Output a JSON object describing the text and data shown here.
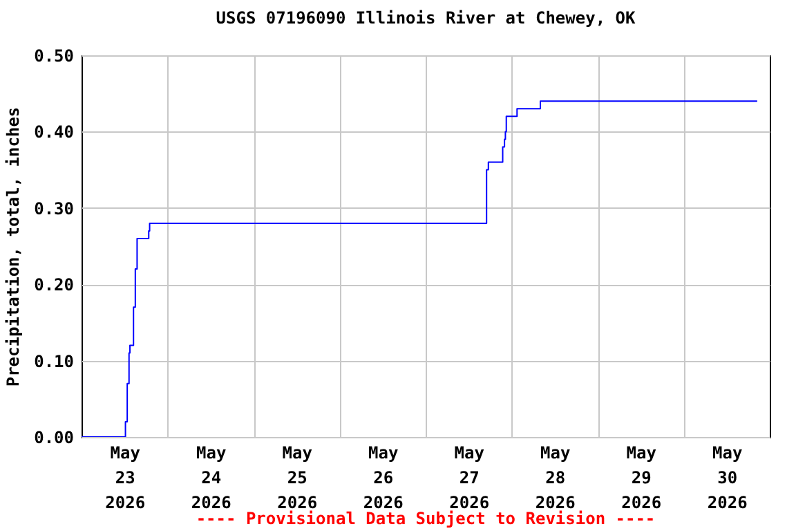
{
  "chart_data": {
    "type": "step",
    "title": "USGS 07196090 Illinois River at Chewey, OK",
    "ylabel": "Precipitation, total, inches",
    "annotations": [
      "---- Provisional Data Subject to Revision ----"
    ],
    "x": [
      "2026-05-23T00:00",
      "2026-05-23T12:15",
      "2026-05-23T12:45",
      "2026-05-23T13:15",
      "2026-05-23T13:30",
      "2026-05-23T14:30",
      "2026-05-23T15:00",
      "2026-05-23T15:30",
      "2026-05-23T18:45",
      "2026-05-23T19:00",
      "2026-05-27T17:00",
      "2026-05-27T17:30",
      "2026-05-27T21:30",
      "2026-05-27T22:00",
      "2026-05-27T22:15",
      "2026-05-27T22:30",
      "2026-05-28T01:30",
      "2026-05-28T08:00",
      "2026-05-30T20:30"
    ],
    "series": [
      {
        "color": "#0000ff",
        "values": [
          0.0,
          0.02,
          0.07,
          0.11,
          0.12,
          0.17,
          0.22,
          0.26,
          0.27,
          0.28,
          0.35,
          0.36,
          0.38,
          0.39,
          0.4,
          0.42,
          0.43,
          0.44,
          0.44
        ]
      }
    ],
    "xlim": [
      "2026-05-23T00:00",
      "2026-05-31T00:00"
    ],
    "xticks": [
      {
        "value": "2026-05-23T12:00",
        "label": "May\n23\n2026"
      },
      {
        "value": "2026-05-24T00:00",
        "label": null
      },
      {
        "value": "2026-05-24T12:00",
        "label": "May\n24\n2026"
      },
      {
        "value": "2026-05-25T00:00",
        "label": null
      },
      {
        "value": "2026-05-25T12:00",
        "label": "May\n25\n2026"
      },
      {
        "value": "2026-05-26T00:00",
        "label": null
      },
      {
        "value": "2026-05-26T12:00",
        "label": "May\n26\n2026"
      },
      {
        "value": "2026-05-27T00:00",
        "label": null
      },
      {
        "value": "2026-05-27T12:00",
        "label": "May\n27\n2026"
      },
      {
        "value": "2026-05-28T00:00",
        "label": null
      },
      {
        "value": "2026-05-28T12:00",
        "label": "May\n28\n2026"
      },
      {
        "value": "2026-05-29T00:00",
        "label": null
      },
      {
        "value": "2026-05-29T12:00",
        "label": "May\n29\n2026"
      },
      {
        "value": "2026-05-30T00:00",
        "label": null
      },
      {
        "value": "2026-05-30T12:00",
        "label": "May\n30\n2026"
      }
    ],
    "ylim": [
      0,
      0.5
    ],
    "yticks": [
      {
        "value": 0,
        "label": "0.00"
      },
      {
        "value": 0.1,
        "label": "0.10"
      },
      {
        "value": 0.2,
        "label": "0.20"
      },
      {
        "value": 0.3,
        "label": "0.30"
      },
      {
        "value": 0.4,
        "label": "0.40"
      },
      {
        "value": 0.5,
        "label": "0.50"
      }
    ],
    "grid": true
  }
}
